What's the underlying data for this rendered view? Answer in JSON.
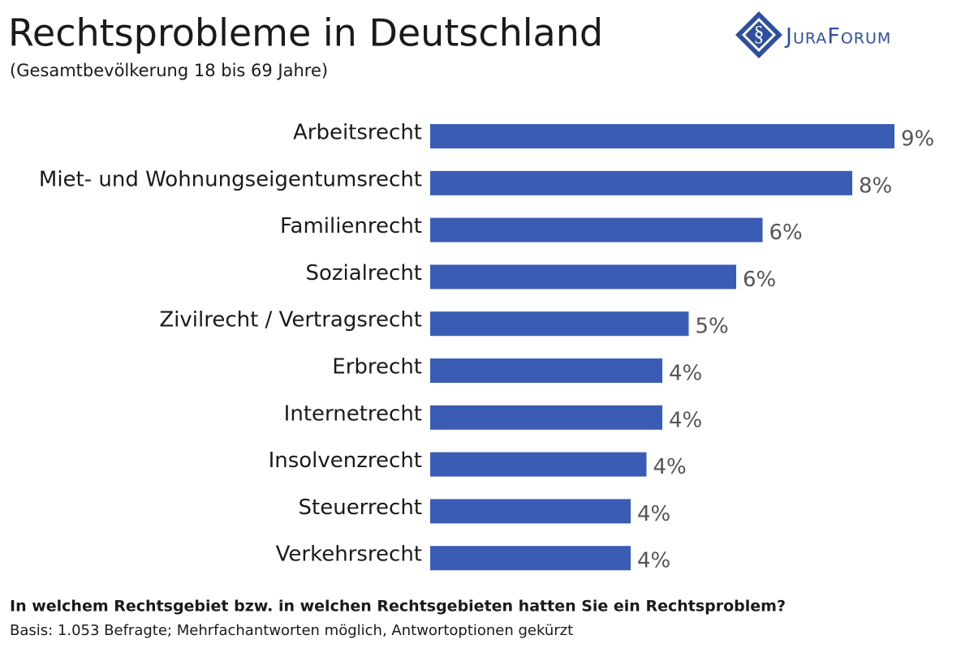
{
  "chart_data": {
    "type": "bar",
    "orientation": "horizontal",
    "title": "Rechtsprobleme in Deutschland",
    "subtitle": "(Gesamtbevölkerung 18 bis 69 Jahre)",
    "logo": "JuraForum",
    "categories": [
      "Arbeitsrecht",
      "Miet- und Wohnungseigentumsrecht",
      "Familienrecht",
      "Sozialrecht",
      "Zivilrecht / Vertragsrecht",
      "Erbrecht",
      "Internetrecht",
      "Insolvenzrecht",
      "Steuerrecht",
      "Verkehrsrecht"
    ],
    "values": [
      8.8,
      8.0,
      6.3,
      5.8,
      4.9,
      4.4,
      4.4,
      4.1,
      3.8,
      3.8
    ],
    "value_labels": [
      "9%",
      "8%",
      "6%",
      "6%",
      "5%",
      "4%",
      "4%",
      "4%",
      "4%",
      "4%"
    ],
    "color": "#3b5cb4",
    "footnote_question": "In welchem Rechtsgebiet bzw. in welchen Rechtsgebieten hatten Sie ein Rechtsproblem?",
    "footnote_basis": "Basis: 1.053 Befragte; Mehrfachantworten möglich, Antwortoptionen gekürzt"
  }
}
